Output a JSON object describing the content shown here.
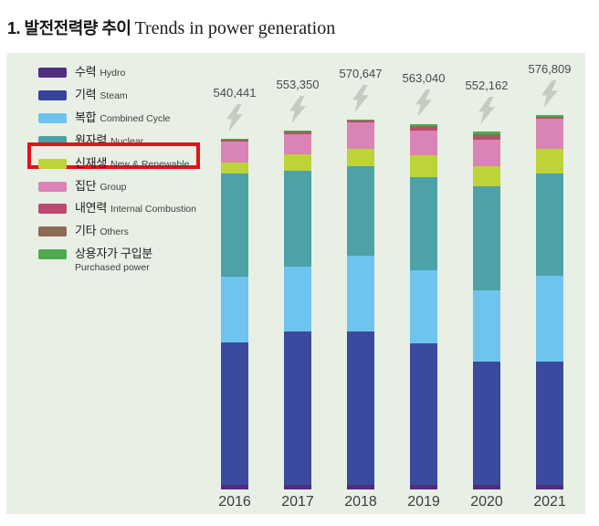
{
  "title": {
    "korean": "1. 발전전력량 추이",
    "english": "Trends in power generation"
  },
  "panel": {
    "background": "#e8efe5"
  },
  "legend": {
    "position": "left",
    "highlight_color": "#e31219",
    "items": [
      {
        "korean": "수력",
        "english": "Hydro",
        "color": "#4f2d80",
        "key": "hydro",
        "highlighted": false,
        "english_below": false
      },
      {
        "korean": "기력",
        "english": "Steam",
        "color": "#35439a",
        "key": "steam",
        "highlighted": false,
        "english_below": false
      },
      {
        "korean": "복합",
        "english": "Combined Cycle",
        "color": "#6fc4ef",
        "key": "combined-cycle",
        "highlighted": false,
        "english_below": false
      },
      {
        "korean": "원자력",
        "english": "Nuclear",
        "color": "#4da2a8",
        "key": "nuclear",
        "highlighted": false,
        "english_below": false
      },
      {
        "korean": "신재생",
        "english": "New & Renewable",
        "color": "#bdd338",
        "key": "new-renewable",
        "highlighted": true,
        "english_below": false
      },
      {
        "korean": "집단",
        "english": "Group",
        "color": "#d984b5",
        "key": "group",
        "highlighted": false,
        "english_below": false
      },
      {
        "korean": "내연력",
        "english": "Internal Combustion",
        "color": "#bc4a70",
        "key": "internal-combustion",
        "highlighted": false,
        "english_below": false
      },
      {
        "korean": "기타",
        "english": "Others",
        "color": "#8b6b55",
        "key": "others",
        "highlighted": false,
        "english_below": false
      },
      {
        "korean": "상용자가 구입분",
        "english": "Purchased power",
        "color": "#51a94e",
        "key": "purchased-power",
        "highlighted": false,
        "english_below": true
      }
    ]
  },
  "icons": {
    "lightning_color": "#c7cac3"
  },
  "chart_data": {
    "type": "bar",
    "stacked": true,
    "title": "발전전력량 추이 Trends in power generation",
    "xlabel": "",
    "ylabel": "",
    "unit": "GWh",
    "legend_position": "left",
    "grid": false,
    "bar_top_icon": "lightning-bolt",
    "categories": [
      "2016",
      "2017",
      "2018",
      "2019",
      "2020",
      "2021"
    ],
    "totals": [
      540441,
      553350,
      570647,
      563040,
      552162,
      576809
    ],
    "total_labels": [
      "540,441",
      "553,350",
      "570,647",
      "563,040",
      "552,162",
      "576,809"
    ],
    "series_values_estimated_from_pixels": true,
    "series": [
      {
        "key": "hydro",
        "korean": "수력",
        "name": "Hydro",
        "color": "#4f2d80",
        "values": [
          7100,
          7000,
          7100,
          7100,
          7100,
          7100
        ]
      },
      {
        "key": "steam",
        "korean": "기력",
        "name": "Steam",
        "color": "#3b4a9c",
        "values": [
          219800,
          236900,
          236800,
          218600,
          189800,
          189900
        ]
      },
      {
        "key": "combined-cycle",
        "korean": "복합",
        "name": "Combined Cycle",
        "color": "#6fc4ef",
        "values": [
          100700,
          99300,
          116300,
          112000,
          110600,
          131900
        ]
      },
      {
        "key": "nuclear",
        "korean": "원자력",
        "name": "Nuclear",
        "color": "#4da2a8",
        "values": [
          158800,
          147500,
          137500,
          143200,
          160200,
          157400
        ]
      },
      {
        "key": "new-renewable",
        "korean": "신재생",
        "name": "New & Renewable",
        "color": "#bdd338",
        "values": [
          17000,
          25500,
          26900,
          34000,
          31200,
          38300
        ]
      },
      {
        "key": "group",
        "korean": "집단",
        "name": "Group",
        "color": "#d984b5",
        "values": [
          32600,
          31200,
          41100,
          38300,
          39700,
          46800
        ]
      },
      {
        "key": "internal-combustion",
        "korean": "내연력",
        "name": "Internal Combustion",
        "color": "#bc4a70",
        "values": [
          1500,
          2000,
          2200,
          3500,
          5000,
          1800
        ]
      },
      {
        "key": "others",
        "korean": "기타",
        "name": "Others",
        "color": "#8b6b55",
        "values": [
          2000,
          3000,
          1800,
          3300,
          4500,
          1600
        ]
      },
      {
        "key": "purchased-power",
        "korean": "상용자가 구입분",
        "name": "Purchased power",
        "color": "#51a94e",
        "values": [
          941,
          950,
          947,
          3040,
          4062,
          2009
        ]
      }
    ]
  }
}
